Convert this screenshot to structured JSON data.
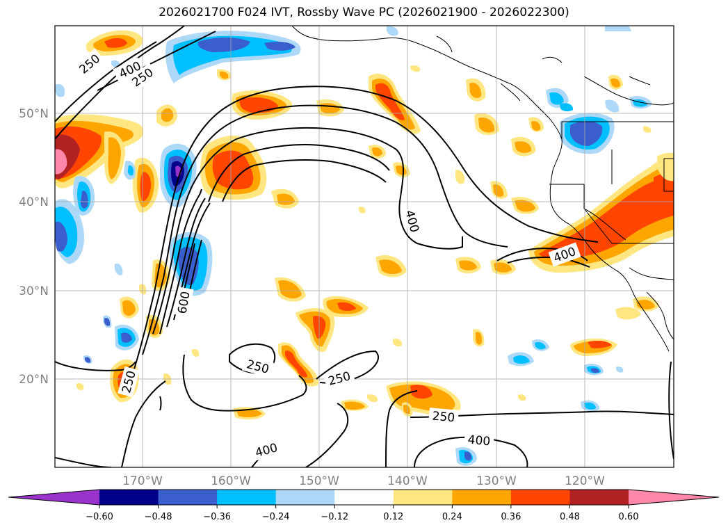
{
  "title": "2026021700 F024 IVT, Rossby Wave PC (2026021900 - 2026022300)",
  "latitude_labels": [
    "50°N",
    "40°N",
    "30°N",
    "20°N"
  ],
  "longitude_labels": [
    "170°W",
    "160°W",
    "150°W",
    "140°W",
    "130°W",
    "120°W"
  ],
  "contour_labels": [
    "250",
    "400",
    "250",
    "400",
    "600",
    "250",
    "250",
    "250",
    "250",
    "400",
    "400",
    "400"
  ],
  "colorbar": {
    "ticks": [
      "−0.60",
      "−0.48",
      "−0.36",
      "−0.24",
      "−0.12",
      "0.12",
      "0.24",
      "0.36",
      "0.48",
      "0.60"
    ],
    "colors": [
      "#9933cc",
      "#00008b",
      "#3a5fcd",
      "#00bfff",
      "#add8f7",
      "#ffffff",
      "#ffe680",
      "#ffa500",
      "#ff4500",
      "#b22222",
      "#ff88aa"
    ]
  }
}
